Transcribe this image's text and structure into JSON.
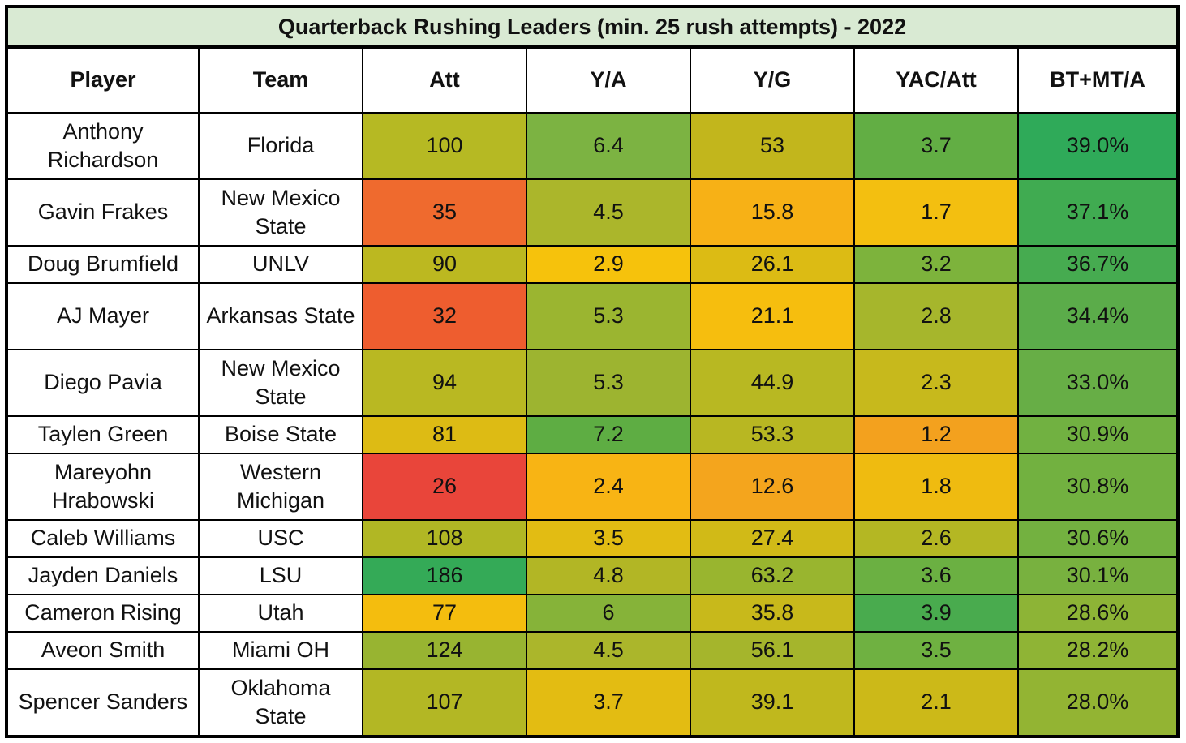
{
  "chart_data": {
    "type": "table",
    "title": "Quarterback Rushing Leaders (min. 25 rush attempts) - 2022",
    "columns": [
      "Player",
      "Team",
      "Att",
      "Y/A",
      "Y/G",
      "YAC/Att",
      "BT+MT/A"
    ],
    "rows": [
      [
        "Anthony Richardson",
        "Florida",
        "100",
        "6.4",
        "53",
        "3.7",
        "39.0%"
      ],
      [
        "Gavin Frakes",
        "New Mexico State",
        "35",
        "4.5",
        "15.8",
        "1.7",
        "37.1%"
      ],
      [
        "Doug Brumfield",
        "UNLV",
        "90",
        "2.9",
        "26.1",
        "3.2",
        "36.7%"
      ],
      [
        "AJ Mayer",
        "Arkansas State",
        "32",
        "5.3",
        "21.1",
        "2.8",
        "34.4%"
      ],
      [
        "Diego Pavia",
        "New Mexico State",
        "94",
        "5.3",
        "44.9",
        "2.3",
        "33.0%"
      ],
      [
        "Taylen Green",
        "Boise State",
        "81",
        "7.2",
        "53.3",
        "1.2",
        "30.9%"
      ],
      [
        "Mareyohn Hrabowski",
        "Western Michigan",
        "26",
        "2.4",
        "12.6",
        "1.8",
        "30.8%"
      ],
      [
        "Caleb Williams",
        "USC",
        "108",
        "3.5",
        "27.4",
        "2.6",
        "30.6%"
      ],
      [
        "Jayden Daniels",
        "LSU",
        "186",
        "4.8",
        "63.2",
        "3.6",
        "30.1%"
      ],
      [
        "Cameron Rising",
        "Utah",
        "77",
        "6",
        "35.8",
        "3.9",
        "28.6%"
      ],
      [
        "Aveon Smith",
        "Miami OH",
        "124",
        "4.5",
        "56.1",
        "3.5",
        "28.2%"
      ],
      [
        "Spencer Sanders",
        "Oklahoma State",
        "107",
        "3.7",
        "39.1",
        "2.1",
        "28.0%"
      ]
    ],
    "cell_colors": [
      [
        "#ffffff",
        "#ffffff",
        "#b6b923",
        "#7cb342",
        "#c2b61c",
        "#62ae44",
        "#2faa59"
      ],
      [
        "#ffffff",
        "#ffffff",
        "#ef6a2e",
        "#abb62b",
        "#f7b116",
        "#f3bf10",
        "#40ab51"
      ],
      [
        "#ffffff",
        "#ffffff",
        "#bcb820",
        "#f6c20c",
        "#dcbb14",
        "#7db33c",
        "#46ab50"
      ],
      [
        "#ffffff",
        "#ffffff",
        "#ee5d2f",
        "#9bb530",
        "#f6be0e",
        "#a6b62c",
        "#5bac4a"
      ],
      [
        "#ffffff",
        "#ffffff",
        "#b9b822",
        "#9db430",
        "#b8b822",
        "#c7b91c",
        "#67ae46"
      ],
      [
        "#ffffff",
        "#ffffff",
        "#ddbb14",
        "#5ead43",
        "#b8b722",
        "#f3a11e",
        "#71b141"
      ],
      [
        "#ffffff",
        "#ffffff",
        "#e9453a",
        "#f8b414",
        "#f4a51d",
        "#efbb10",
        "#72b140"
      ],
      [
        "#ffffff",
        "#ffffff",
        "#b1b724",
        "#e2bc13",
        "#d1ba17",
        "#b4b723",
        "#73b140"
      ],
      [
        "#ffffff",
        "#ffffff",
        "#34aa57",
        "#b2b625",
        "#99b52f",
        "#6bb042",
        "#78b13f"
      ],
      [
        "#ffffff",
        "#ffffff",
        "#f4bd0e",
        "#86b339",
        "#c8b91b",
        "#49ab4e",
        "#8db436"
      ],
      [
        "#ffffff",
        "#ffffff",
        "#98b431",
        "#abb62b",
        "#a5b52c",
        "#6fb141",
        "#8fb435"
      ],
      [
        "#ffffff",
        "#ffffff",
        "#b3b724",
        "#e3bc12",
        "#c0b81d",
        "#ccb918",
        "#93b433"
      ]
    ],
    "header_bg": "#d9ead3"
  }
}
